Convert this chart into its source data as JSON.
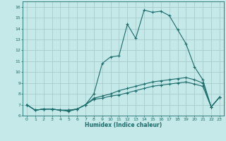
{
  "xlabel": "Humidex (Indice chaleur)",
  "bg_color": "#c5e8e8",
  "grid_color": "#a8cccc",
  "line_color": "#1a6b6b",
  "xlim": [
    -0.5,
    23.5
  ],
  "ylim": [
    6.0,
    16.5
  ],
  "xticks": [
    0,
    1,
    2,
    3,
    4,
    5,
    6,
    7,
    8,
    9,
    10,
    11,
    12,
    13,
    14,
    15,
    16,
    17,
    18,
    19,
    20,
    21,
    22,
    23
  ],
  "yticks": [
    6,
    7,
    8,
    9,
    10,
    11,
    12,
    13,
    14,
    15,
    16
  ],
  "line1_x": [
    0,
    1,
    2,
    3,
    4,
    5,
    6,
    7,
    8,
    9,
    10,
    11,
    12,
    13,
    14,
    15,
    16,
    17,
    18,
    19,
    20,
    21,
    22,
    23
  ],
  "line1_y": [
    7.0,
    6.5,
    6.6,
    6.6,
    6.5,
    6.4,
    6.6,
    7.0,
    8.0,
    10.8,
    11.4,
    11.5,
    14.4,
    13.1,
    15.7,
    15.5,
    15.6,
    15.2,
    13.9,
    12.6,
    10.5,
    9.3,
    6.8,
    7.7
  ],
  "line2_x": [
    0,
    1,
    2,
    3,
    4,
    5,
    6,
    7,
    8,
    9,
    10,
    11,
    12,
    13,
    14,
    15,
    16,
    17,
    18,
    19,
    20,
    21,
    22,
    23
  ],
  "line2_y": [
    7.0,
    6.5,
    6.6,
    6.6,
    6.5,
    6.5,
    6.6,
    7.0,
    7.6,
    7.8,
    8.0,
    8.3,
    8.5,
    8.7,
    8.9,
    9.1,
    9.2,
    9.3,
    9.4,
    9.5,
    9.3,
    9.0,
    6.8,
    7.7
  ],
  "line3_x": [
    0,
    1,
    2,
    3,
    4,
    5,
    6,
    7,
    8,
    9,
    10,
    11,
    12,
    13,
    14,
    15,
    16,
    17,
    18,
    19,
    20,
    21,
    22,
    23
  ],
  "line3_y": [
    7.0,
    6.5,
    6.6,
    6.6,
    6.5,
    6.5,
    6.6,
    7.0,
    7.5,
    7.6,
    7.8,
    7.9,
    8.1,
    8.3,
    8.5,
    8.7,
    8.8,
    8.9,
    9.0,
    9.1,
    8.9,
    8.7,
    6.8,
    7.7
  ]
}
